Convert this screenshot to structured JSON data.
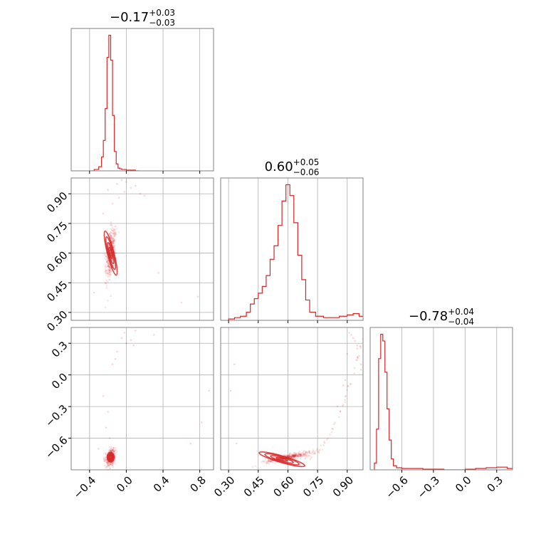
{
  "chart_data": {
    "type": "corner",
    "color": "#d62728",
    "grid": true,
    "params": [
      {
        "title_main": "−0.17",
        "title_sup": "+0.03",
        "title_sub": "−0.03",
        "range": [
          -0.6,
          0.95
        ],
        "ticks": [
          -0.4,
          0.0,
          0.4,
          0.8
        ],
        "tick_labels": [
          "−0.4",
          "0.0",
          "0.4",
          "0.8"
        ]
      },
      {
        "title_main": "0.60",
        "title_sup": "+0.05",
        "title_sub": "−0.06",
        "range": [
          0.26,
          0.98
        ],
        "ticks": [
          0.3,
          0.45,
          0.6,
          0.75,
          0.9
        ],
        "tick_labels": [
          "0.30",
          "0.45",
          "0.60",
          "0.75",
          "0.90"
        ]
      },
      {
        "title_main": "−0.78",
        "title_sup": "+0.04",
        "title_sub": "−0.04",
        "range": [
          -0.9,
          0.45
        ],
        "ticks": [
          -0.6,
          -0.3,
          0.0,
          0.3
        ],
        "tick_labels": [
          "−0.6",
          "−0.3",
          "0.0",
          "0.3"
        ]
      }
    ],
    "histograms": [
      {
        "param": 0,
        "x": [
          -0.4,
          -0.35,
          -0.3,
          -0.27,
          -0.25,
          -0.23,
          -0.21,
          -0.19,
          -0.17,
          -0.15,
          -0.13,
          -0.11,
          -0.09,
          -0.07,
          -0.05,
          -0.03,
          0.0,
          0.05,
          0.1
        ],
        "y": [
          0,
          0.01,
          0.03,
          0.1,
          0.22,
          0.45,
          0.82,
          0.98,
          0.8,
          0.4,
          0.14,
          0.05,
          0.02,
          0.015,
          0.01,
          0.01,
          0.005,
          0.005,
          0
        ]
      },
      {
        "param": 1,
        "x": [
          0.3,
          0.33,
          0.36,
          0.39,
          0.41,
          0.43,
          0.45,
          0.47,
          0.49,
          0.51,
          0.53,
          0.55,
          0.57,
          0.59,
          0.61,
          0.63,
          0.65,
          0.67,
          0.69,
          0.71,
          0.74,
          0.78,
          0.82,
          0.86,
          0.9,
          0.93,
          0.96
        ],
        "y": [
          0.01,
          0.02,
          0.03,
          0.06,
          0.12,
          0.16,
          0.2,
          0.25,
          0.33,
          0.45,
          0.55,
          0.7,
          0.88,
          1.0,
          0.92,
          0.72,
          0.48,
          0.3,
          0.15,
          0.06,
          0.03,
          0.02,
          0.02,
          0.03,
          0.04,
          0.05,
          0.03
        ]
      },
      {
        "param": 2,
        "x": [
          -0.86,
          -0.84,
          -0.82,
          -0.8,
          -0.78,
          -0.76,
          -0.74,
          -0.72,
          -0.7,
          -0.68,
          -0.65,
          -0.6,
          -0.5,
          -0.4,
          -0.2,
          0.0,
          0.1,
          0.2,
          0.3,
          0.4
        ],
        "y": [
          0.05,
          0.3,
          0.82,
          1.0,
          0.95,
          0.72,
          0.45,
          0.22,
          0.08,
          0.03,
          0.015,
          0.01,
          0.01,
          0.005,
          0.0,
          0.005,
          0.01,
          0.015,
          0.02,
          0.01
        ]
      }
    ],
    "scatter": [
      {
        "x_param": 0,
        "y_param": 1,
        "core": {
          "x_mean": -0.17,
          "y_mean": 0.6,
          "x_sd": 0.025,
          "y_sd": 0.055,
          "n": 420
        },
        "outliers": [
          [
            -0.1,
            0.95
          ],
          [
            -0.05,
            0.97
          ],
          [
            0.0,
            0.96
          ],
          [
            0.05,
            0.93
          ],
          [
            -0.02,
            0.91
          ],
          [
            -0.08,
            0.88
          ],
          [
            0.1,
            0.94
          ],
          [
            -0.15,
            0.85
          ],
          [
            -0.2,
            0.92
          ],
          [
            0.15,
            0.9
          ],
          [
            0.2,
            0.89
          ],
          [
            -0.25,
            0.8
          ],
          [
            0.78,
            0.38
          ],
          [
            0.6,
            0.35
          ],
          [
            -0.35,
            0.4
          ],
          [
            0.35,
            0.5
          ],
          [
            -0.12,
            0.99
          ],
          [
            0.03,
            0.98
          ]
        ]
      },
      {
        "x_param": 0,
        "y_param": 2,
        "core": {
          "x_mean": -0.17,
          "y_mean": -0.78,
          "x_sd": 0.025,
          "y_sd": 0.035,
          "n": 380
        },
        "outliers": [
          [
            -0.05,
            0.35
          ],
          [
            0.0,
            0.3
          ],
          [
            0.05,
            0.33
          ],
          [
            -0.02,
            0.4
          ],
          [
            0.08,
            0.28
          ],
          [
            -0.1,
            0.22
          ],
          [
            0.1,
            0.42
          ],
          [
            -0.2,
            -0.35
          ],
          [
            -0.22,
            -0.5
          ],
          [
            -0.25,
            -0.2
          ],
          [
            -0.15,
            0.1
          ],
          [
            0.9,
            -0.15
          ],
          [
            0.7,
            -0.65
          ],
          [
            0.82,
            -0.45
          ],
          [
            -0.3,
            -0.7
          ],
          [
            0.3,
            0.38
          ],
          [
            -0.18,
            -0.6
          ],
          [
            -0.12,
            0.15
          ]
        ]
      },
      {
        "x_param": 1,
        "y_param": 2,
        "core": {
          "x_mean": 0.6,
          "y_mean": -0.78,
          "x_sd": 0.055,
          "y_sd": 0.02,
          "n": 400
        },
        "outliers": [
          [
            0.92,
            0.38
          ],
          [
            0.94,
            0.32
          ],
          [
            0.95,
            0.25
          ],
          [
            0.96,
            0.18
          ],
          [
            0.97,
            0.1
          ],
          [
            0.93,
            0.35
          ],
          [
            0.91,
            0.4
          ],
          [
            0.97,
            0.05
          ],
          [
            0.88,
            -0.1
          ],
          [
            0.85,
            -0.3
          ],
          [
            0.9,
            0.2
          ],
          [
            0.33,
            0.1
          ],
          [
            0.31,
            -0.15
          ],
          [
            0.34,
            -0.65
          ],
          [
            0.89,
            -0.05
          ],
          [
            0.95,
            0.28
          ]
        ]
      }
    ],
    "ellipses": [
      {
        "x_param": 0,
        "y_param": 1,
        "cx": -0.17,
        "cy": 0.6,
        "rx": [
          0.012,
          0.02,
          0.028,
          0.036
        ],
        "ry": [
          0.03,
          0.055,
          0.085,
          0.115
        ],
        "rot": 0.25
      },
      {
        "x_param": 0,
        "y_param": 2,
        "cx": -0.17,
        "cy": -0.78,
        "rx": [
          0.014,
          0.022,
          0.03,
          0.038
        ],
        "ry": [
          0.015,
          0.025,
          0.035,
          0.045
        ],
        "rot": 0.1
      },
      {
        "x_param": 1,
        "y_param": 2,
        "cx": 0.57,
        "cy": -0.8,
        "rx": [
          0.03,
          0.06,
          0.09,
          0.12
        ],
        "ry": [
          0.01,
          0.018,
          0.026,
          0.032
        ],
        "rot": -0.28
      }
    ]
  }
}
